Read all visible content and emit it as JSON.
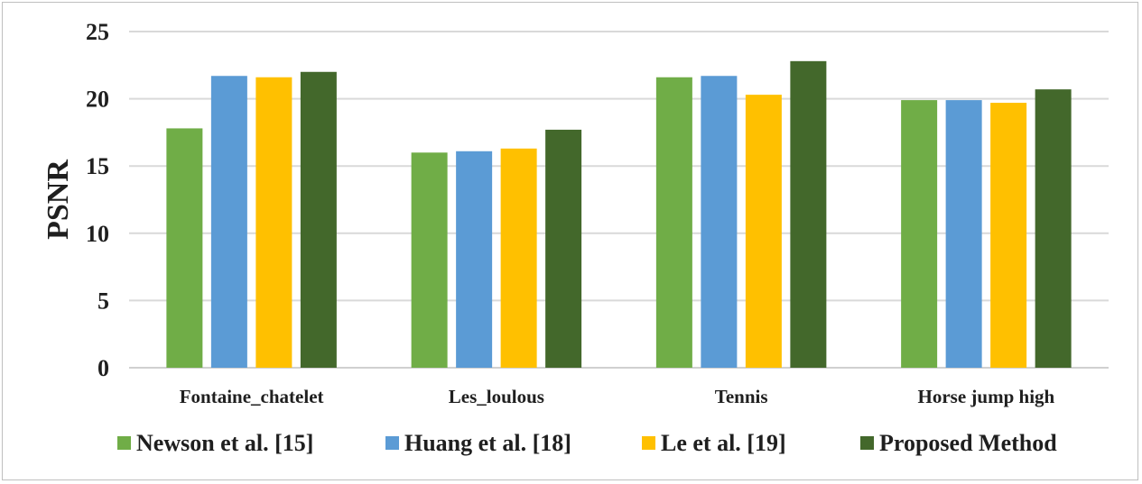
{
  "chart_data": {
    "type": "bar",
    "title": "",
    "xlabel": "",
    "ylabel": "PSNR",
    "ylim": [
      0,
      25
    ],
    "yticks": [
      "0",
      "5",
      "10",
      "15",
      "20",
      "25"
    ],
    "grid": true,
    "legend_position": "bottom",
    "categories": [
      "Fontaine_chatelet",
      "Les_loulous",
      "Tennis",
      "Horse jump high"
    ],
    "series": [
      {
        "name": "Newson et al. [15]",
        "color": "#70ad47",
        "values": [
          17.8,
          16.0,
          21.6,
          19.9
        ]
      },
      {
        "name": "Huang et al. [18]",
        "color": "#5b9bd5",
        "values": [
          21.7,
          16.1,
          21.7,
          19.9
        ]
      },
      {
        "name": "Le et al.  [19]",
        "color": "#ffc000",
        "values": [
          21.6,
          16.3,
          20.3,
          19.7
        ]
      },
      {
        "name": "Proposed Method",
        "color": "#43682b",
        "values": [
          22.0,
          17.7,
          22.8,
          20.7
        ]
      }
    ]
  }
}
